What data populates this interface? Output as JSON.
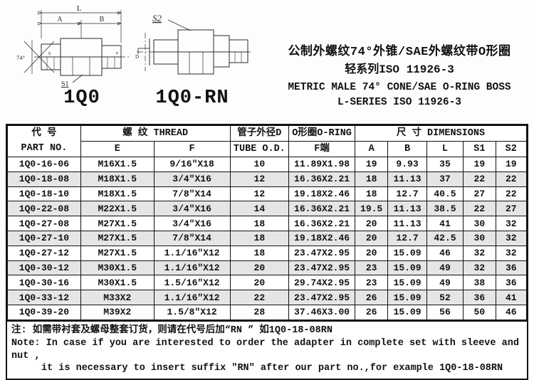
{
  "figures": [
    {
      "caption": "1Q0",
      "labels": {
        "L": "L",
        "A": "A",
        "B": "B",
        "angle": "74°",
        "S1": "S1",
        "E": "E",
        "F": "F"
      }
    },
    {
      "caption": "1Q0-RN",
      "labels": {
        "S2": "S2",
        "D": "D"
      }
    }
  ],
  "title": {
    "cn1": "公制外螺纹74°外锥/SAE外螺纹带O形圈",
    "cn2": "轻系列ISO 11926-3",
    "en1": "METRIC MALE 74° CONE/SAE O-RING BOSS",
    "en2": "L-SERIES ISO 11926-3"
  },
  "table": {
    "header": {
      "part_cn": "代  号",
      "part_en": "PART  NO.",
      "thread": "螺  纹  THREAD",
      "thread_e": "E",
      "thread_f": "F",
      "tube_cn": "管子外径D",
      "tube_en": "TUBE O.D.",
      "oring_cn": "O形圈O-RING",
      "oring_f": "F端",
      "dims": "尺  寸   DIMENSIONS",
      "dim_a": "A",
      "dim_b": "B",
      "dim_l": "L",
      "dim_s1": "S1",
      "dim_s2": "S2"
    },
    "rows": [
      [
        "1Q0-16-06",
        "M16X1.5",
        "9/16″X18",
        "10",
        "11.89X1.98",
        "19",
        "9.93",
        "35",
        "19",
        "19"
      ],
      [
        "1Q0-18-08",
        "M18X1.5",
        "3/4″X16",
        "12",
        "16.36X2.21",
        "18",
        "11.13",
        "37",
        "22",
        "22"
      ],
      [
        "1Q0-18-10",
        "M18X1.5",
        "7/8″X14",
        "12",
        "19.18X2.46",
        "18",
        "12.7",
        "40.5",
        "27",
        "22"
      ],
      [
        "1Q0-22-08",
        "M22X1.5",
        "3/4″X16",
        "14",
        "16.36X2.21",
        "19.5",
        "11.13",
        "38.5",
        "22",
        "27"
      ],
      [
        "1Q0-27-08",
        "M27X1.5",
        "3/4″X16",
        "18",
        "16.36X2.21",
        "20",
        "11.13",
        "41",
        "30",
        "32"
      ],
      [
        "1Q0-27-10",
        "M27X1.5",
        "7/8″X14",
        "18",
        "19.18X2.46",
        "20",
        "12.7",
        "42.5",
        "30",
        "32"
      ],
      [
        "1Q0-27-12",
        "M27X1.5",
        "1.1/16″X12",
        "18",
        "23.47X2.95",
        "20",
        "15.09",
        "46",
        "32",
        "32"
      ],
      [
        "1Q0-30-12",
        "M30X1.5",
        "1.1/16″X12",
        "20",
        "23.47X2.95",
        "23",
        "15.09",
        "49",
        "32",
        "36"
      ],
      [
        "1Q0-30-16",
        "M30X1.5",
        "1.5/16″X12",
        "20",
        "29.74X2.95",
        "23",
        "15.09",
        "49",
        "38",
        "36"
      ],
      [
        "1Q0-33-12",
        "M33X2",
        "1.1/16″X12",
        "22",
        "23.47X2.95",
        "26",
        "15.09",
        "52",
        "36",
        "41"
      ],
      [
        "1Q0-39-20",
        "M39X2",
        "1.5/8″X12",
        "28",
        "37.46X3.00",
        "26",
        "15.09",
        "56",
        "50",
        "46"
      ]
    ]
  },
  "notes": {
    "cn": "注: 如需带衬套及螺母整套订货，则请在代号后加“RN ” 如1Q0-18-08RN",
    "en1": "Note: In case if you are interested to order the adapter in complete set with  sleeve and nut ,",
    "en2": "it is necessary to insert suffix ″RN″ after our part no.,for example 1Q0-18-08RN"
  }
}
